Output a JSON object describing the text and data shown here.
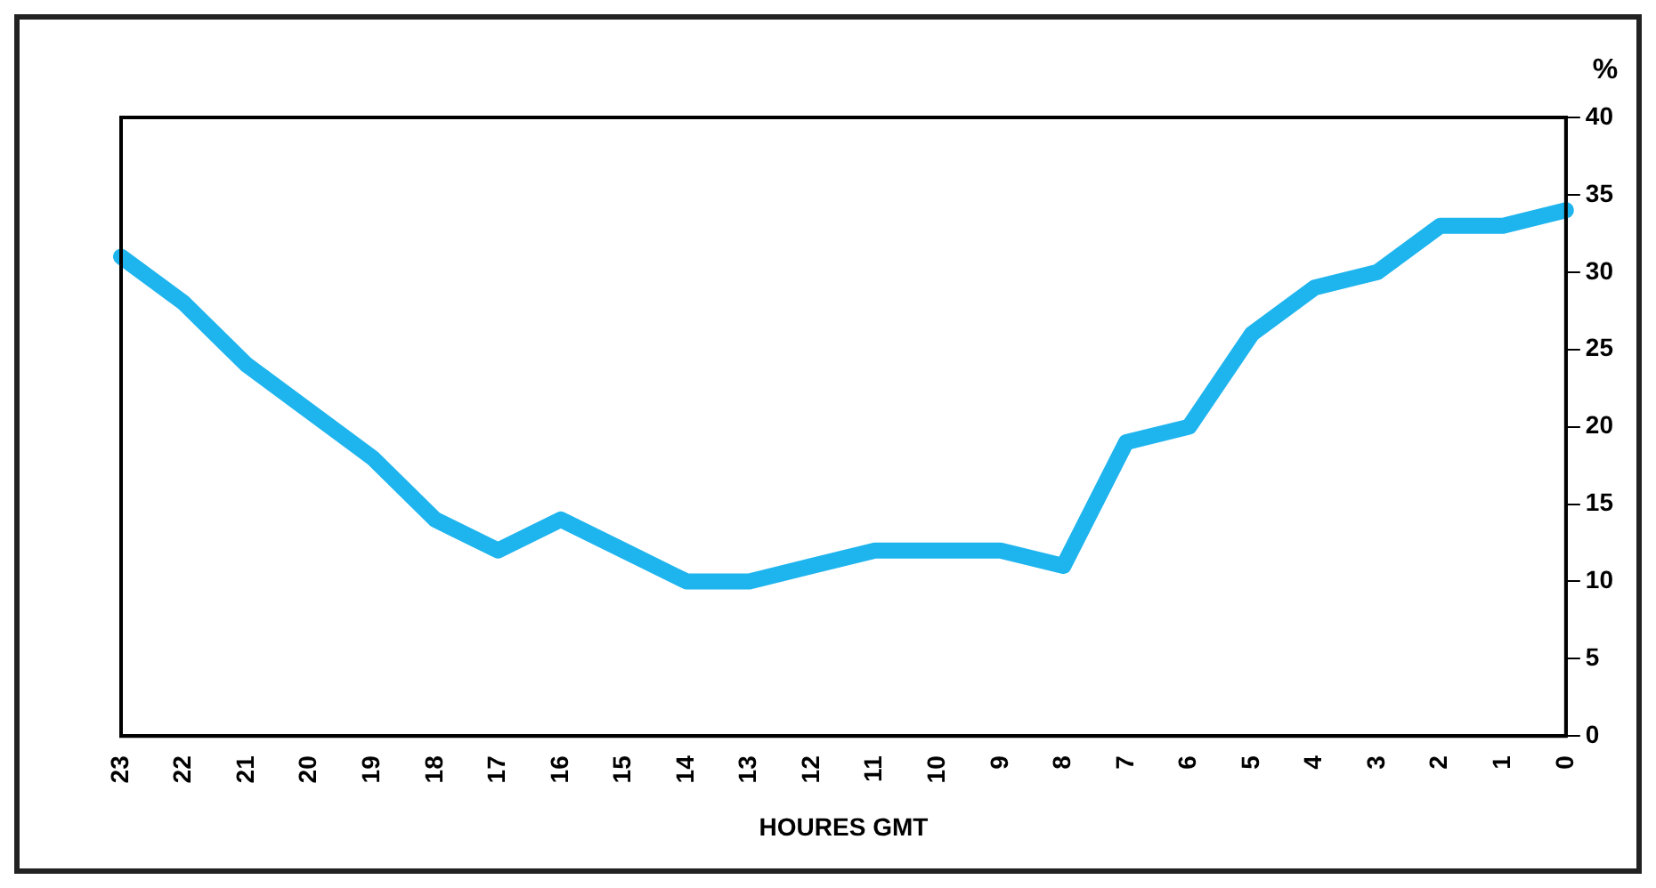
{
  "chart_data": {
    "type": "line",
    "xlabel": "HOURES GMT",
    "ylabel": "%",
    "categories": [
      "23",
      "22",
      "21",
      "20",
      "19",
      "18",
      "17",
      "16",
      "15",
      "14",
      "13",
      "12",
      "11",
      "10",
      "9",
      "8",
      "7",
      "6",
      "5",
      "4",
      "3",
      "2",
      "1",
      "0"
    ],
    "series": [
      {
        "color": "#1eb4ee",
        "values": [
          31,
          28,
          24,
          21,
          18,
          14,
          12,
          14,
          12,
          10,
          10,
          11,
          12,
          12,
          12,
          11,
          19,
          20,
          26,
          29,
          30,
          33,
          33,
          34
        ]
      }
    ],
    "ylim": [
      0,
      40
    ],
    "yticks": [
      0,
      5,
      10,
      15,
      20,
      25,
      30,
      35,
      40
    ],
    "grid": false,
    "legend": false,
    "marker": "none",
    "line_style": "solid"
  }
}
